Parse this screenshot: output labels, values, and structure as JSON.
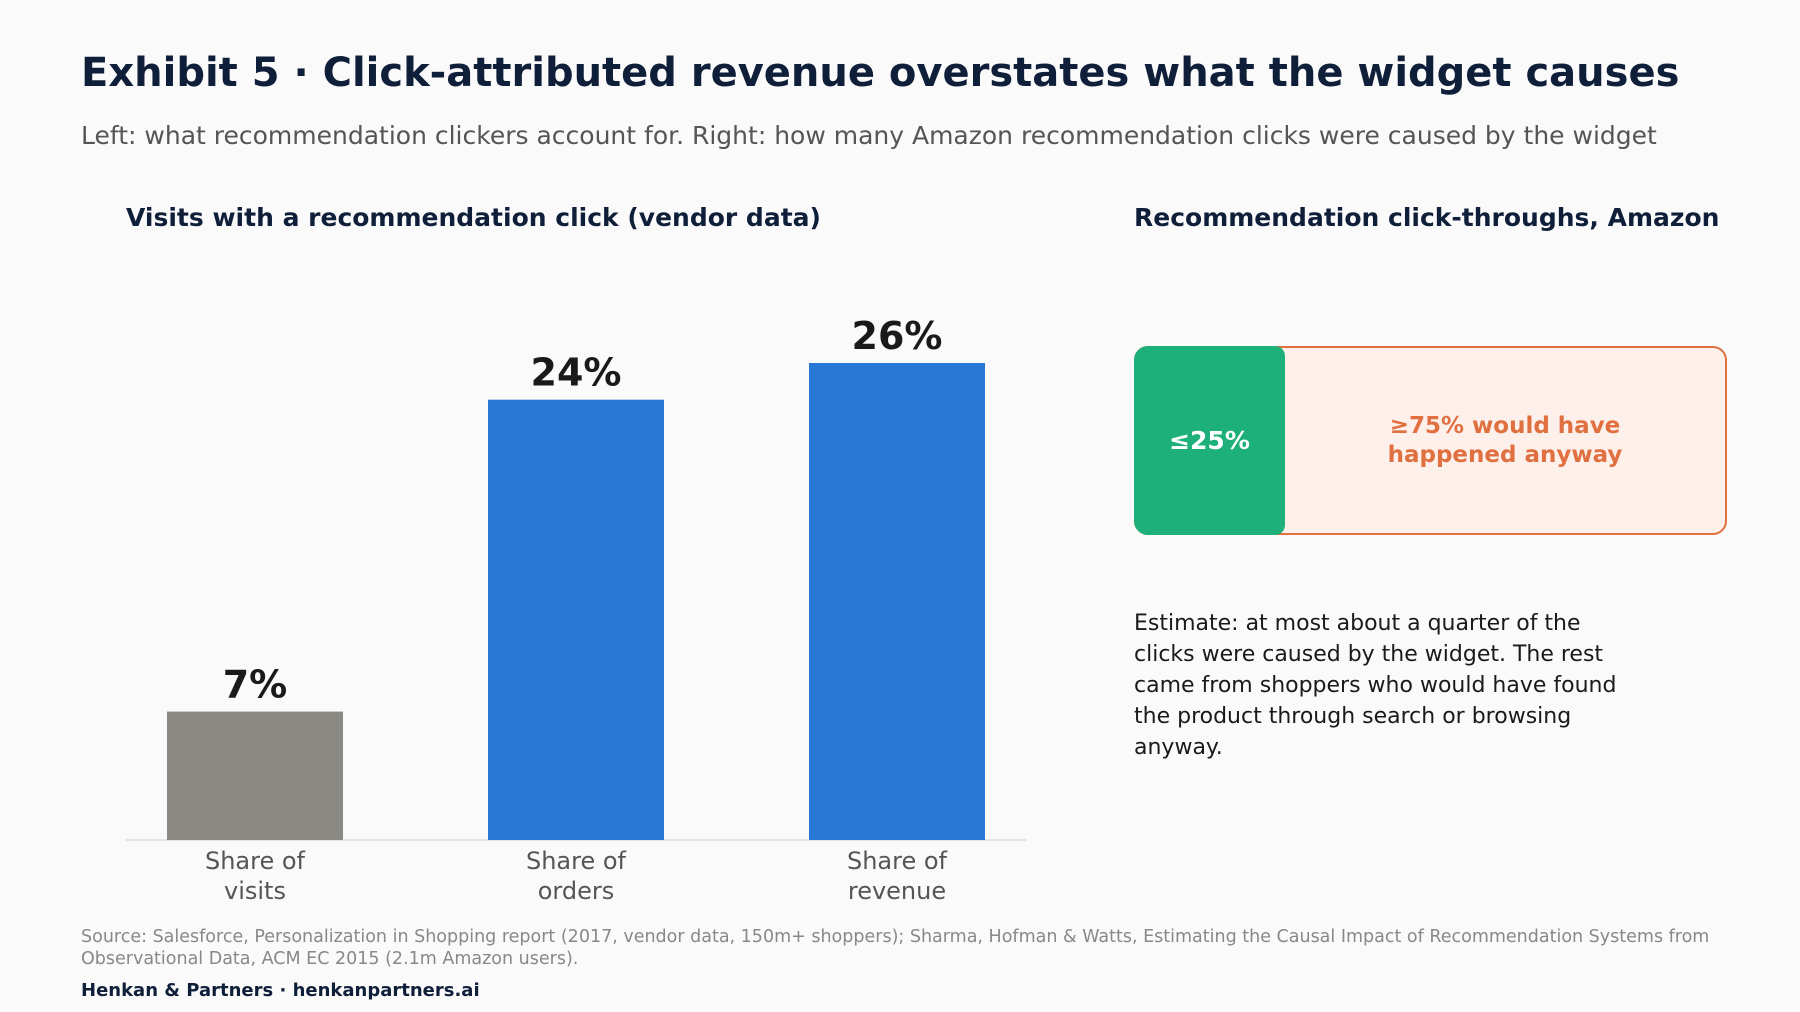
{
  "header": {
    "title": "Exhibit 5 · Click-attributed revenue overstates what the widget causes",
    "subtitle": "Left: what recommendation clickers account for. Right: how many Amazon recommendation clicks were caused by the widget"
  },
  "left_panel": {
    "title": "Visits with a recommendation click (vendor data)"
  },
  "right_panel": {
    "title": "Recommendation click-throughs, Amazon",
    "causal_label": "≤25%",
    "causal_share": 0.25,
    "rest_label": "≥75% would have happened anyway",
    "note": "Estimate: at most about a quarter of the clicks were caused by the widget. The rest came from shoppers who would have found the product through search or browsing anyway.",
    "colors": {
      "causal": "#1db07a",
      "rest_border": "#e0703f",
      "rest_fill": "#fdf0eb"
    }
  },
  "chart_data": {
    "type": "bar",
    "title": "Visits with a recommendation click (vendor data)",
    "categories": [
      [
        "Share of",
        "visits"
      ],
      [
        "Share of",
        "orders"
      ],
      [
        "Share of",
        "revenue"
      ]
    ],
    "values": [
      7,
      24,
      26
    ],
    "value_labels": [
      "7%",
      "24%",
      "26%"
    ],
    "colors": [
      "#8a8984",
      "#2a78d6",
      "#2a78d6"
    ],
    "ylim": [
      0,
      30
    ],
    "grid": false,
    "xlabel": "",
    "ylabel": ""
  },
  "footer": {
    "source": "Source: Salesforce, Personalization in Shopping report (2017, vendor data, 150m+ shoppers); Sharma, Hofman & Watts, Estimating the Causal Impact of Recommendation Systems from Observational Data, ACM EC 2015 (2.1m Amazon users).",
    "brand": "Henkan & Partners · henkanpartners.ai"
  }
}
